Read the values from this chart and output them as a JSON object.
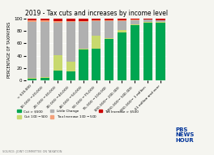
{
  "title": "2019 - Tax cuts and increases by income level",
  "ylabel": "PERCENTAGE OF TAXPAYERS",
  "categories": [
    "< $10,000",
    "$10,000-$20,000",
    "$20,000-$30,000",
    "$30,000-$40,000",
    "$40,000-$50,000",
    "$50,000-$75,000",
    "$75,000-$100,000",
    "$100,000-$200,000",
    "$200,000-$500,000",
    "$500,000-$1 million",
    "$1 million and over"
  ],
  "series": {
    "cut_over500": [
      3,
      5,
      16,
      15,
      50,
      52,
      67,
      78,
      89,
      93,
      93
    ],
    "cut_100_500": [
      1,
      1,
      25,
      15,
      1,
      20,
      2,
      3,
      2,
      2,
      2
    ],
    "little_change": [
      91,
      89,
      53,
      65,
      44,
      24,
      27,
      15,
      6,
      3,
      2
    ],
    "tax_inc_100_500": [
      2,
      2,
      2,
      1,
      1,
      1,
      1,
      1,
      1,
      0.5,
      0.5
    ],
    "tax_inc_over500": [
      3,
      3,
      4,
      4,
      4,
      3,
      3,
      3,
      2,
      1.5,
      2.5
    ]
  },
  "colors": {
    "cut_over500": "#00a651",
    "cut_100_500": "#c8d96e",
    "little_change": "#b0b0b0",
    "tax_inc_100_500": "#f4a07a",
    "tax_inc_over500": "#cc0000"
  },
  "legend": [
    {
      "label": "Cut > $500",
      "color": "#00a651"
    },
    {
      "label": "Cut $100-$500",
      "color": "#c8d96e"
    },
    {
      "label": "Little Change",
      "color": "#b0b0b0"
    },
    {
      "label": "Tax Increase $100-$500",
      "color": "#f4a07a"
    },
    {
      "label": "Tax Increase > $500",
      "color": "#cc0000"
    }
  ],
  "source": "SOURCE: JOINT COMMITTEE ON TAXATION",
  "ylim": [
    0,
    100
  ],
  "background_color": "#f5f5f0"
}
